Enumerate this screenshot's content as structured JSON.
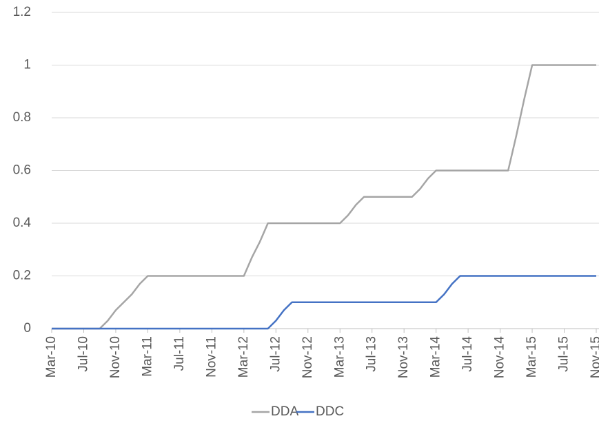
{
  "chart_data": {
    "type": "line",
    "categories": [
      "Mar-10",
      null,
      null,
      null,
      "Jul-10",
      null,
      null,
      null,
      "Nov-10",
      null,
      null,
      null,
      "Mar-11",
      null,
      null,
      null,
      "Jul-11",
      null,
      null,
      null,
      "Nov-11",
      null,
      null,
      null,
      "Mar-12",
      null,
      null,
      null,
      "Jul-12",
      null,
      null,
      null,
      "Nov-12",
      null,
      null,
      null,
      "Mar-13",
      null,
      null,
      null,
      "Jul-13",
      null,
      null,
      null,
      "Nov-13",
      null,
      null,
      null,
      "Mar-14",
      null,
      null,
      null,
      "Jul-14",
      null,
      null,
      null,
      "Nov-14",
      null,
      null,
      null,
      "Mar-15",
      null,
      null,
      null,
      "Jul-15",
      null,
      null,
      null,
      "Nov-15"
    ],
    "series": [
      {
        "name": "DDA",
        "color": "#a5a5a5",
        "values": [
          0,
          0,
          0,
          0,
          0,
          0,
          0,
          0.03,
          0.07,
          0.1,
          0.13,
          0.17,
          0.2,
          0.2,
          0.2,
          0.2,
          0.2,
          0.2,
          0.2,
          0.2,
          0.2,
          0.2,
          0.2,
          0.2,
          0.2,
          0.27,
          0.33,
          0.4,
          0.4,
          0.4,
          0.4,
          0.4,
          0.4,
          0.4,
          0.4,
          0.4,
          0.4,
          0.43,
          0.47,
          0.5,
          0.5,
          0.5,
          0.5,
          0.5,
          0.5,
          0.5,
          0.53,
          0.57,
          0.6,
          0.6,
          0.6,
          0.6,
          0.6,
          0.6,
          0.6,
          0.6,
          0.6,
          0.6,
          0.73,
          0.87,
          1,
          1,
          1,
          1,
          1,
          1,
          1,
          1,
          1
        ]
      },
      {
        "name": "DDC",
        "color": "#4472c4",
        "values": [
          0,
          0,
          0,
          0,
          0,
          0,
          0,
          0,
          0,
          0,
          0,
          0,
          0,
          0,
          0,
          0,
          0,
          0,
          0,
          0,
          0,
          0,
          0,
          0,
          0,
          0,
          0,
          0,
          0.03,
          0.07,
          0.1,
          0.1,
          0.1,
          0.1,
          0.1,
          0.1,
          0.1,
          0.1,
          0.1,
          0.1,
          0.1,
          0.1,
          0.1,
          0.1,
          0.1,
          0.1,
          0.1,
          0.1,
          0.1,
          0.13,
          0.17,
          0.2,
          0.2,
          0.2,
          0.2,
          0.2,
          0.2,
          0.2,
          0.2,
          0.2,
          0.2,
          0.2,
          0.2,
          0.2,
          0.2,
          0.2,
          0.2,
          0.2,
          0.2
        ]
      }
    ],
    "ylim": [
      0,
      1.2
    ],
    "yticks": [
      0,
      0.2,
      0.4,
      0.6,
      0.8,
      1,
      1.2
    ],
    "grid": true,
    "legend": "bottom"
  }
}
